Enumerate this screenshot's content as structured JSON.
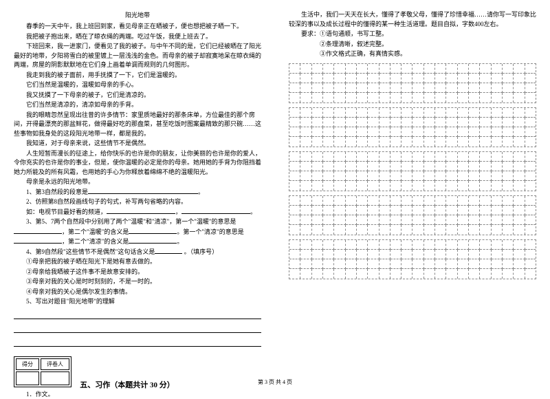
{
  "passage": {
    "title": "阳光地带",
    "paragraphs": [
      "春季的一天中午，我上班回到家，看见母亲正在晒被子，便也想把被子晒一下。",
      "我把被子抱出来，晒在了晾衣绳的两端。吃过午饭，我便上班去了。",
      "下班回来，我一进家门，便看见了我的被子。与中午不同的是，它们已经被晒在了阳光最好的地带，夕阳将雪白的被里镀上一层浅浅的金色。而母亲的被子却寂寞地呆在晾衣绳的两端，房屋的阴影默默地在它们身上画着单调而规则的几何图形。",
      "我走到我的被子面前，用手抚摸了一下，它们是温暖的。",
      "它们当然是温暖的，温暖如母亲的手心。",
      "我又抚摸了一下母亲的被子，它们是清凉的。",
      "它们当然是清凉的，清凉如母亲的手背。",
      "我的眼睛忽然呈现出往昔的许多情节：家里质地最好的那条床单，方位最佳的那个房间，开得最漂亮的那盆鲜花，做得最好吃的那盘菜，甚至吃饭时图案最精致的那只碗……这些事物如我身处的这段阳光地带一样，都是我的。",
      "我知道，对于母亲来说，这些情节不是偶然。",
      "人生短暂而漫长的征途上，给你快乐的也许是你的朋友，让你美丽的也许是你的爱人，令你充实的也许是你的事业，但是，使你温暖的必定是你的母亲。她用她的手背为你阻挡着她力所能及的所有风霜，也用她的手心为你释放着绵绵不绝的温暖阳光。",
      "母亲是永远的阳光地带。"
    ]
  },
  "questions": {
    "q1": {
      "num": "1、",
      "text": "第3自然段的段意是"
    },
    "q2": {
      "num": "2、",
      "text": "仿照第8自然段画线句子的句式，补写两句省略的内容。",
      "example": "如：电视节目最好看的频道，"
    },
    "q3": {
      "num": "3、",
      "text": "第5、7两个自然段中分别用了两个\"温暖\"和\"清凉\"，第一个\"温暖\"的意思是",
      "text2": "，第二个\"温暖\"的含义是",
      "text3": "。第一个\"清凉\"的意思是",
      "text4": "，第二个\"清凉\"的含义是"
    },
    "q4": {
      "num": "4、",
      "text": "第9自然段\"这些情节不是偶然\"这句话含义是",
      "suffix": "。（填序号）",
      "opts": [
        "①母亲把我的被子晒在阳光下是她有意去做的。",
        "②母亲给我晒被子这件事不是故意安排的。",
        "③母亲对我的关心是时时刻刻的，不是一时的。",
        "④母亲对我的关心是偶尔发生的事情。"
      ]
    },
    "q5": {
      "num": "5、",
      "text": "写出对题目\"阳光地带\"的理解"
    }
  },
  "scoreBox": {
    "h1": "得分",
    "h2": "评卷人"
  },
  "section5": {
    "title": "五、习作（本题共计 30 分）",
    "q": "1．作文。"
  },
  "rightCol": {
    "intro": "生活中，我们一天天在长大，懂得了孝敬父母，懂得了珍惜幸福……请你写一写印象比较深的事以及成长过程中的懂得的某一种生活道理。题目自拟，字数400左右。",
    "req": "要求：①语句通顺，书写工整。",
    "req2": "②条理清晰，叙述完整。",
    "req3": "③作文格式正确，有真情实感。"
  },
  "grid": {
    "blocks": 5,
    "rowsPerBlock": 4,
    "colsPerRow": 22
  },
  "footer": "第 3 页  共 4 页"
}
